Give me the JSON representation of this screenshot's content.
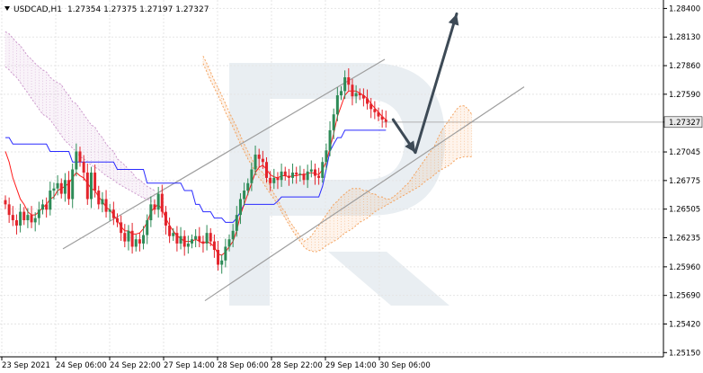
{
  "header": {
    "symbol": "USDCAD,H1",
    "ohlc": "1.27354 1.27375 1.27197 1.27327",
    "menu_icon": "triangle-down-icon"
  },
  "colors": {
    "bull": "#2e8b57",
    "bear": "#e3232b",
    "kijun": "#2a2aff",
    "tenkan": "#ff1a1a",
    "cloud_pink": "#cc99cc",
    "cloud_orange": "#f4a460",
    "channel": "#9e9e9e",
    "arrow": "#3d4a56",
    "grid": "#e5e5e5"
  },
  "chart_data": {
    "type": "candlestick",
    "symbol": "USDCAD",
    "timeframe": "H1",
    "title": "USDCAD,H1  1.27354 1.27375 1.27197 1.27327",
    "x_labels": [
      "23 Sep 2021",
      "24 Sep 06:00",
      "24 Sep 22:00",
      "27 Sep 14:00",
      "28 Sep 06:00",
      "28 Sep 22:00",
      "29 Sep 14:00",
      "30 Sep 06:00"
    ],
    "y_ticks": [
      "1.28400",
      "1.28130",
      "1.27860",
      "1.27590",
      "1.27327",
      "1.27045",
      "1.26775",
      "1.26505",
      "1.26235",
      "1.25960",
      "1.25690",
      "1.25420",
      "1.25150"
    ],
    "ylim": [
      1.2511,
      1.2848
    ],
    "last_price": "1.27327",
    "grid": true,
    "closes": [
      1.2655,
      1.2645,
      1.264,
      1.2635,
      1.2648,
      1.264,
      1.2645,
      1.2638,
      1.2642,
      1.265,
      1.2655,
      1.265,
      1.2668,
      1.267,
      1.2675,
      1.2665,
      1.2678,
      1.266,
      1.2688,
      1.2705,
      1.2695,
      1.2685,
      1.266,
      1.2685,
      1.2668,
      1.2655,
      1.266,
      1.2648,
      1.265,
      1.2642,
      1.2638,
      1.2628,
      1.262,
      1.263,
      1.2615,
      1.2622,
      1.2618,
      1.2626,
      1.264,
      1.2655,
      1.265,
      1.2665,
      1.2648,
      1.2635,
      1.2625,
      1.2628,
      1.2618,
      1.2625,
      1.2615,
      1.2618,
      1.2622,
      1.2625,
      1.262,
      1.2618,
      1.2628,
      1.262,
      1.2612,
      1.2598,
      1.2602,
      1.2615,
      1.2622,
      1.263,
      1.2645,
      1.266,
      1.2668,
      1.2675,
      1.2688,
      1.2702,
      1.2698,
      1.2695,
      1.268,
      1.2675,
      1.268,
      1.2678,
      1.2686,
      1.2682,
      1.268,
      1.2685,
      1.2683,
      1.2684,
      1.2678,
      1.2686,
      1.2688,
      1.2682,
      1.268,
      1.2695,
      1.2706,
      1.2725,
      1.274,
      1.2758,
      1.2762,
      1.2775,
      1.2768,
      1.2757,
      1.276,
      1.2758,
      1.2755,
      1.275,
      1.2745,
      1.2742,
      1.2738,
      1.2735,
      1.2733
    ],
    "tenkan_sen": [
      1.2705,
      1.2695,
      1.268,
      1.267,
      1.266,
      1.2655,
      1.2648,
      1.2645,
      1.2645,
      1.2648,
      1.2652,
      1.2655,
      1.266,
      1.2662,
      1.2668,
      1.267,
      1.2672,
      1.2675,
      1.268,
      1.2685,
      1.2682,
      1.268,
      1.2675,
      1.267,
      1.2668,
      1.2662,
      1.2658,
      1.2652,
      1.265,
      1.2645,
      1.264,
      1.2634,
      1.263,
      1.263,
      1.2627,
      1.2627,
      1.2628,
      1.2632,
      1.2638,
      1.2648,
      1.2652,
      1.2655,
      1.265,
      1.2642,
      1.2635,
      1.263,
      1.2625,
      1.2623,
      1.262,
      1.262,
      1.262,
      1.2622,
      1.262,
      1.2618,
      1.262,
      1.2618,
      1.2615,
      1.2608,
      1.2607,
      1.261,
      1.2615,
      1.262,
      1.263,
      1.2645,
      1.2655,
      1.2665,
      1.2675,
      1.2685,
      1.269,
      1.2692,
      1.2688,
      1.2683,
      1.2681,
      1.268,
      1.2682,
      1.2682,
      1.2681,
      1.2682,
      1.2682,
      1.2683,
      1.2683,
      1.2684,
      1.2685,
      1.2684,
      1.2683,
      1.2688,
      1.2695,
      1.2708,
      1.2722,
      1.2738,
      1.2748,
      1.2758,
      1.2762,
      1.2762,
      1.2762,
      1.276,
      1.2758,
      1.2755,
      1.275,
      1.2746,
      1.2742,
      1.2738,
      1.2735
    ],
    "kijun_sen": [
      1.2718,
      1.2718,
      1.2712,
      1.2712,
      1.2712,
      1.2712,
      1.2712,
      1.2712,
      1.2712,
      1.2712,
      1.2712,
      1.2712,
      1.2705,
      1.2705,
      1.2705,
      1.2705,
      1.2705,
      1.2705,
      1.2695,
      1.2695,
      1.2695,
      1.2695,
      1.2695,
      1.2695,
      1.2695,
      1.2695,
      1.2695,
      1.2695,
      1.2695,
      1.2695,
      1.2688,
      1.2688,
      1.2688,
      1.2688,
      1.2688,
      1.2688,
      1.2688,
      1.2688,
      1.2675,
      1.2675,
      1.2675,
      1.2675,
      1.2675,
      1.2675,
      1.2675,
      1.2675,
      1.2675,
      1.2675,
      1.2668,
      1.2668,
      1.2668,
      1.2655,
      1.2655,
      1.2648,
      1.2648,
      1.2648,
      1.2642,
      1.2642,
      1.2642,
      1.2638,
      1.2638,
      1.2638,
      1.2642,
      1.2648,
      1.2655,
      1.2655,
      1.2655,
      1.2655,
      1.2655,
      1.2655,
      1.2655,
      1.2655,
      1.2655,
      1.2658,
      1.2662,
      1.2662,
      1.2662,
      1.2662,
      1.2662,
      1.2662,
      1.2662,
      1.2662,
      1.2662,
      1.2662,
      1.2662,
      1.2672,
      1.2688,
      1.2705,
      1.2712,
      1.2718,
      1.2718,
      1.2725,
      1.2725,
      1.2725,
      1.2725,
      1.2725,
      1.2725,
      1.2725,
      1.2725,
      1.2725,
      1.2725,
      1.2725,
      1.2725
    ],
    "cloud_pink_top": [
      1.2818,
      1.2816,
      1.2812,
      1.2808,
      1.2805,
      1.28,
      1.2795,
      1.2792,
      1.2788,
      1.2785,
      1.2782,
      1.278,
      1.2775,
      1.2772,
      1.277,
      1.2768,
      1.2762,
      1.2758,
      1.2752,
      1.275,
      1.2745,
      1.274,
      1.2735,
      1.273,
      1.2728,
      1.2722,
      1.2718,
      1.2712,
      1.2708,
      1.2705,
      1.2698,
      1.2695,
      1.2692,
      1.2688,
      1.2685,
      1.268,
      1.2678,
      1.2675,
      1.2672,
      1.267,
      1.2668
    ],
    "cloud_pink_bottom": [
      1.2785,
      1.2782,
      1.2778,
      1.2775,
      1.277,
      1.2765,
      1.276,
      1.2755,
      1.275,
      1.2745,
      1.274,
      1.2738,
      1.2735,
      1.273,
      1.2725,
      1.272,
      1.2715,
      1.2712,
      1.2708,
      1.2705,
      1.27,
      1.2698,
      1.2695,
      1.2692,
      1.269,
      1.2688,
      1.2685,
      1.2682,
      1.268,
      1.2678,
      1.2675,
      1.2673,
      1.2671,
      1.2669,
      1.2667,
      1.2665,
      1.2663,
      1.2661,
      1.266,
      1.2658,
      1.2657
    ],
    "cloud_orange_top": [
      1.2795,
      1.2788,
      1.278,
      1.2772,
      1.2765,
      1.2758,
      1.275,
      1.2742,
      1.2735,
      1.2728,
      1.272,
      1.2712,
      1.2705,
      1.2698,
      1.2692,
      1.2688,
      1.2685,
      1.268,
      1.2672,
      1.2665,
      1.266,
      1.2652,
      1.2648,
      1.264,
      1.2635,
      1.263,
      1.2625,
      1.262,
      1.2622,
      1.2625,
      1.263,
      1.2635,
      1.264,
      1.2645,
      1.265,
      1.2655,
      1.2658,
      1.2662,
      1.2665,
      1.2668,
      1.267,
      1.267,
      1.267,
      1.2668,
      1.2668,
      1.2665,
      1.2665,
      1.2662,
      1.2662,
      1.266,
      1.266,
      1.2662,
      1.2665,
      1.2668,
      1.2672,
      1.2675,
      1.268,
      1.2685,
      1.269,
      1.2695,
      1.27,
      1.2705,
      1.271,
      1.2718,
      1.2725,
      1.273,
      1.2735,
      1.274,
      1.2745,
      1.2748,
      1.2748,
      1.2745,
      1.274
    ],
    "cloud_orange_bottom": [
      1.2788,
      1.278,
      1.2772,
      1.2765,
      1.2758,
      1.275,
      1.2742,
      1.2735,
      1.2728,
      1.272,
      1.2712,
      1.2705,
      1.2698,
      1.2692,
      1.2685,
      1.268,
      1.2676,
      1.267,
      1.2665,
      1.266,
      1.2655,
      1.2648,
      1.2642,
      1.2636,
      1.263,
      1.2625,
      1.262,
      1.2615,
      1.2612,
      1.2611,
      1.261,
      1.2611,
      1.2613,
      1.2616,
      1.2618,
      1.262,
      1.2622,
      1.2625,
      1.2628,
      1.263,
      1.2632,
      1.2635,
      1.2638,
      1.264,
      1.2642,
      1.2645,
      1.2648,
      1.265,
      1.2652,
      1.2654,
      1.2656,
      1.2658,
      1.266,
      1.2662,
      1.2664,
      1.2666,
      1.2668,
      1.267,
      1.2672,
      1.2675,
      1.2678,
      1.268,
      1.2683,
      1.2686,
      1.2688,
      1.269,
      1.2692,
      1.2695,
      1.2698,
      1.2699,
      1.27,
      1.27,
      1.27
    ],
    "channel_upper": [
      [
        1.2613,
        1.2792
      ]
    ],
    "channel_lower": [
      [
        1.2564,
        1.2766
      ]
    ],
    "forecast_path": [
      1.2735,
      1.2704,
      1.2835
    ]
  }
}
